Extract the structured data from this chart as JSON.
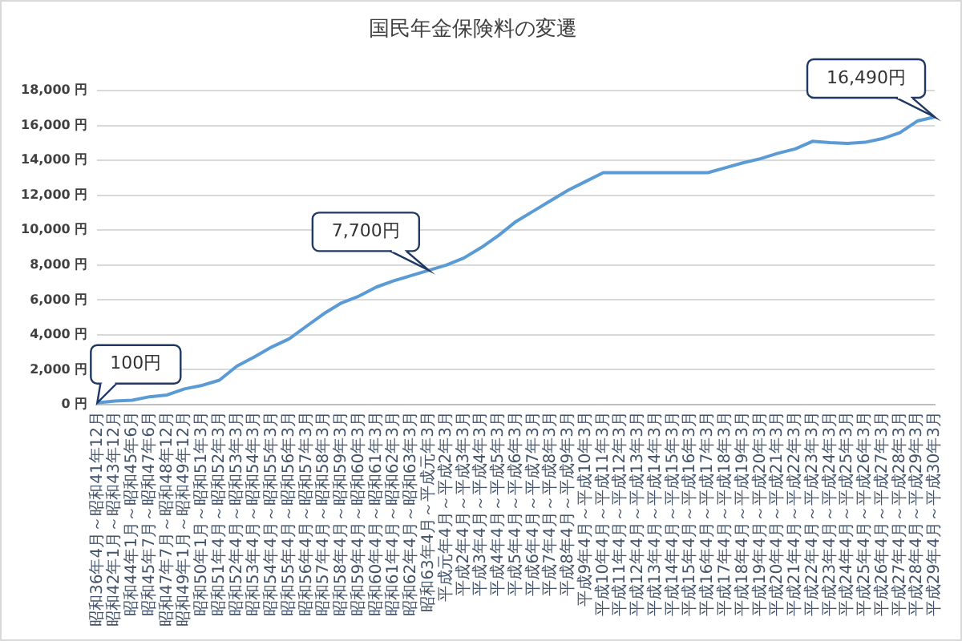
{
  "chart_data": {
    "type": "line",
    "title": "国民年金保険料の変遷",
    "categories": [
      "昭和36年4月～昭和41年12月",
      "昭和42年1月～昭和43年12月",
      "昭和44年1月～昭和45年6月",
      "昭和45年7月～昭和47年6月",
      "昭和47年7月～昭和48年12月",
      "昭和49年1月～昭和49年12月",
      "昭和50年1月～昭和51年3月",
      "昭和51年4月～昭和52年3月",
      "昭和52年4月～昭和53年3月",
      "昭和53年4月～昭和54年3月",
      "昭和54年4月～昭和55年3月",
      "昭和55年4月～昭和56年3月",
      "昭和56年4月～昭和57年3月",
      "昭和57年4月～昭和58年3月",
      "昭和58年4月～昭和59年3月",
      "昭和59年4月～昭和60年3月",
      "昭和60年4月～昭和61年3月",
      "昭和61年4月～昭和62年3月",
      "昭和62年4月～昭和63年3月",
      "昭和63年4月～平成元年3月",
      "平成元年4月～平成2年3月",
      "平成2年4月～平成3年3月",
      "平成3年4月～平成4年3月",
      "平成4年4月～平成5年3月",
      "平成5年4月～平成6年3月",
      "平成6年4月～平成7年3月",
      "平成7年4月～平成8年3月",
      "平成8年4月～平成9年3月",
      "平成9年4月～平成10年3月",
      "平成10年4月～平成11年3月",
      "平成11年4月～平成12年3月",
      "平成12年4月～平成13年3月",
      "平成13年4月～平成14年3月",
      "平成14年4月～平成15年3月",
      "平成15年4月～平成16年3月",
      "平成16年4月～平成17年3月",
      "平成17年4月～平成18年3月",
      "平成18年4月～平成19年3月",
      "平成19年4月～平成20年3月",
      "平成20年4月～平成21年3月",
      "平成21年4月～平成22年3月",
      "平成22年4月～平成23年3月",
      "平成23年4月～平成24年3月",
      "平成24年4月～平成25年3月",
      "平成25年4月～平成26年3月",
      "平成26年4月～平成27年3月",
      "平成27年4月～平成28年3月",
      "平成28年4月～平成29年3月",
      "平成29年4月～平成30年3月"
    ],
    "series": [
      {
        "color": "#5b9bd5",
        "values": [
          100,
          200,
          250,
          450,
          550,
          900,
          1100,
          1400,
          2200,
          2730,
          3300,
          3770,
          4500,
          5220,
          5830,
          6220,
          6740,
          7100,
          7400,
          7700,
          8000,
          8400,
          9000,
          9700,
          10500,
          11100,
          11700,
          12300,
          12800,
          13300,
          13300,
          13300,
          13300,
          13300,
          13300,
          13300,
          13580,
          13860,
          14100,
          14410,
          14660,
          15100,
          15020,
          14980,
          15040,
          15250,
          15590,
          16260,
          16490
        ]
      }
    ],
    "ylim": [
      0,
      18000
    ],
    "yticks": [
      {
        "value": 0,
        "label": "0 円"
      },
      {
        "value": 2000,
        "label": "2,000 円"
      },
      {
        "value": 4000,
        "label": "4,000 円"
      },
      {
        "value": 6000,
        "label": "6,000 円"
      },
      {
        "value": 8000,
        "label": "8,000 円"
      },
      {
        "value": 10000,
        "label": "10,000 円"
      },
      {
        "value": 12000,
        "label": "12,000 円"
      },
      {
        "value": 14000,
        "label": "14,000 円"
      },
      {
        "value": 16000,
        "label": "16,000 円"
      },
      {
        "value": 18000,
        "label": "18,000 円"
      }
    ],
    "annotations": [
      {
        "text": "100円",
        "x": "昭和36年4月～昭和41年12月",
        "y": 100
      },
      {
        "text": "7,700円",
        "x": "昭和63年4月～平成元年3月",
        "y": 7700
      },
      {
        "text": "16,490円",
        "x": "平成29年4月～平成30年3月",
        "y": 16490
      }
    ],
    "grid": "y",
    "marker": "none",
    "line_style": "solid"
  }
}
